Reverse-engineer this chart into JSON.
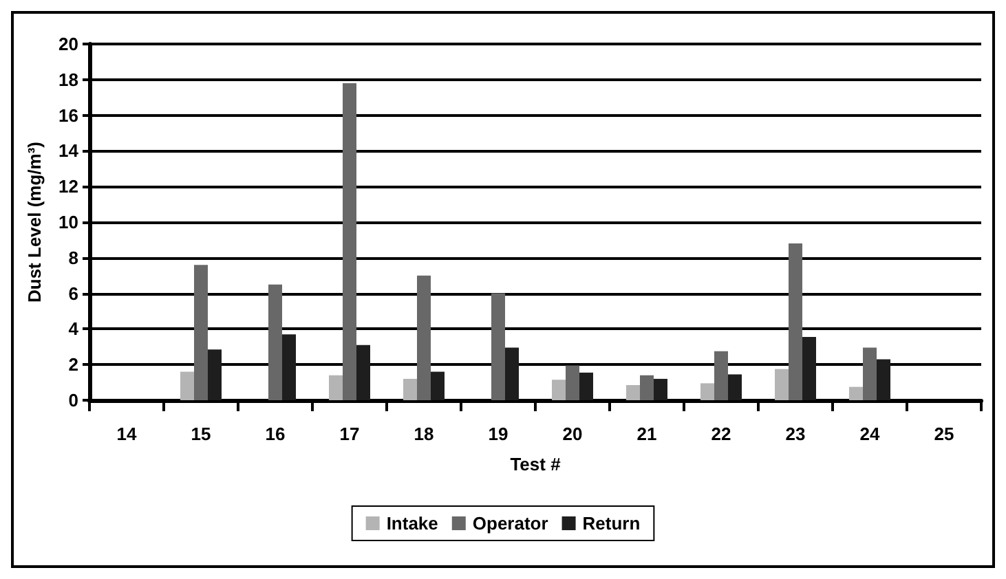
{
  "chart_data": {
    "type": "bar",
    "xlabel": "Test #",
    "ylabel": "Dust Level (mg/m³)",
    "categories": [
      "14",
      "15",
      "16",
      "17",
      "18",
      "19",
      "20",
      "21",
      "22",
      "23",
      "24",
      "25"
    ],
    "series": [
      {
        "name": "Intake",
        "color": "#b4b4b4",
        "values": [
          null,
          1.6,
          null,
          1.4,
          1.2,
          null,
          1.15,
          0.85,
          0.95,
          1.75,
          0.75,
          null
        ]
      },
      {
        "name": "Operator",
        "color": "#686868",
        "values": [
          null,
          7.6,
          6.5,
          17.8,
          7.0,
          6.0,
          1.95,
          1.4,
          2.75,
          8.8,
          2.95,
          null
        ]
      },
      {
        "name": "Return",
        "color": "#1e1e1e",
        "values": [
          null,
          2.85,
          3.7,
          3.1,
          1.6,
          2.95,
          1.55,
          1.2,
          1.45,
          3.55,
          2.3,
          null
        ]
      }
    ],
    "ylim": [
      0,
      20
    ],
    "yticks": [
      0,
      2,
      4,
      6,
      8,
      10,
      12,
      14,
      16,
      18,
      20
    ],
    "grid": "y",
    "legend": "bottom"
  }
}
